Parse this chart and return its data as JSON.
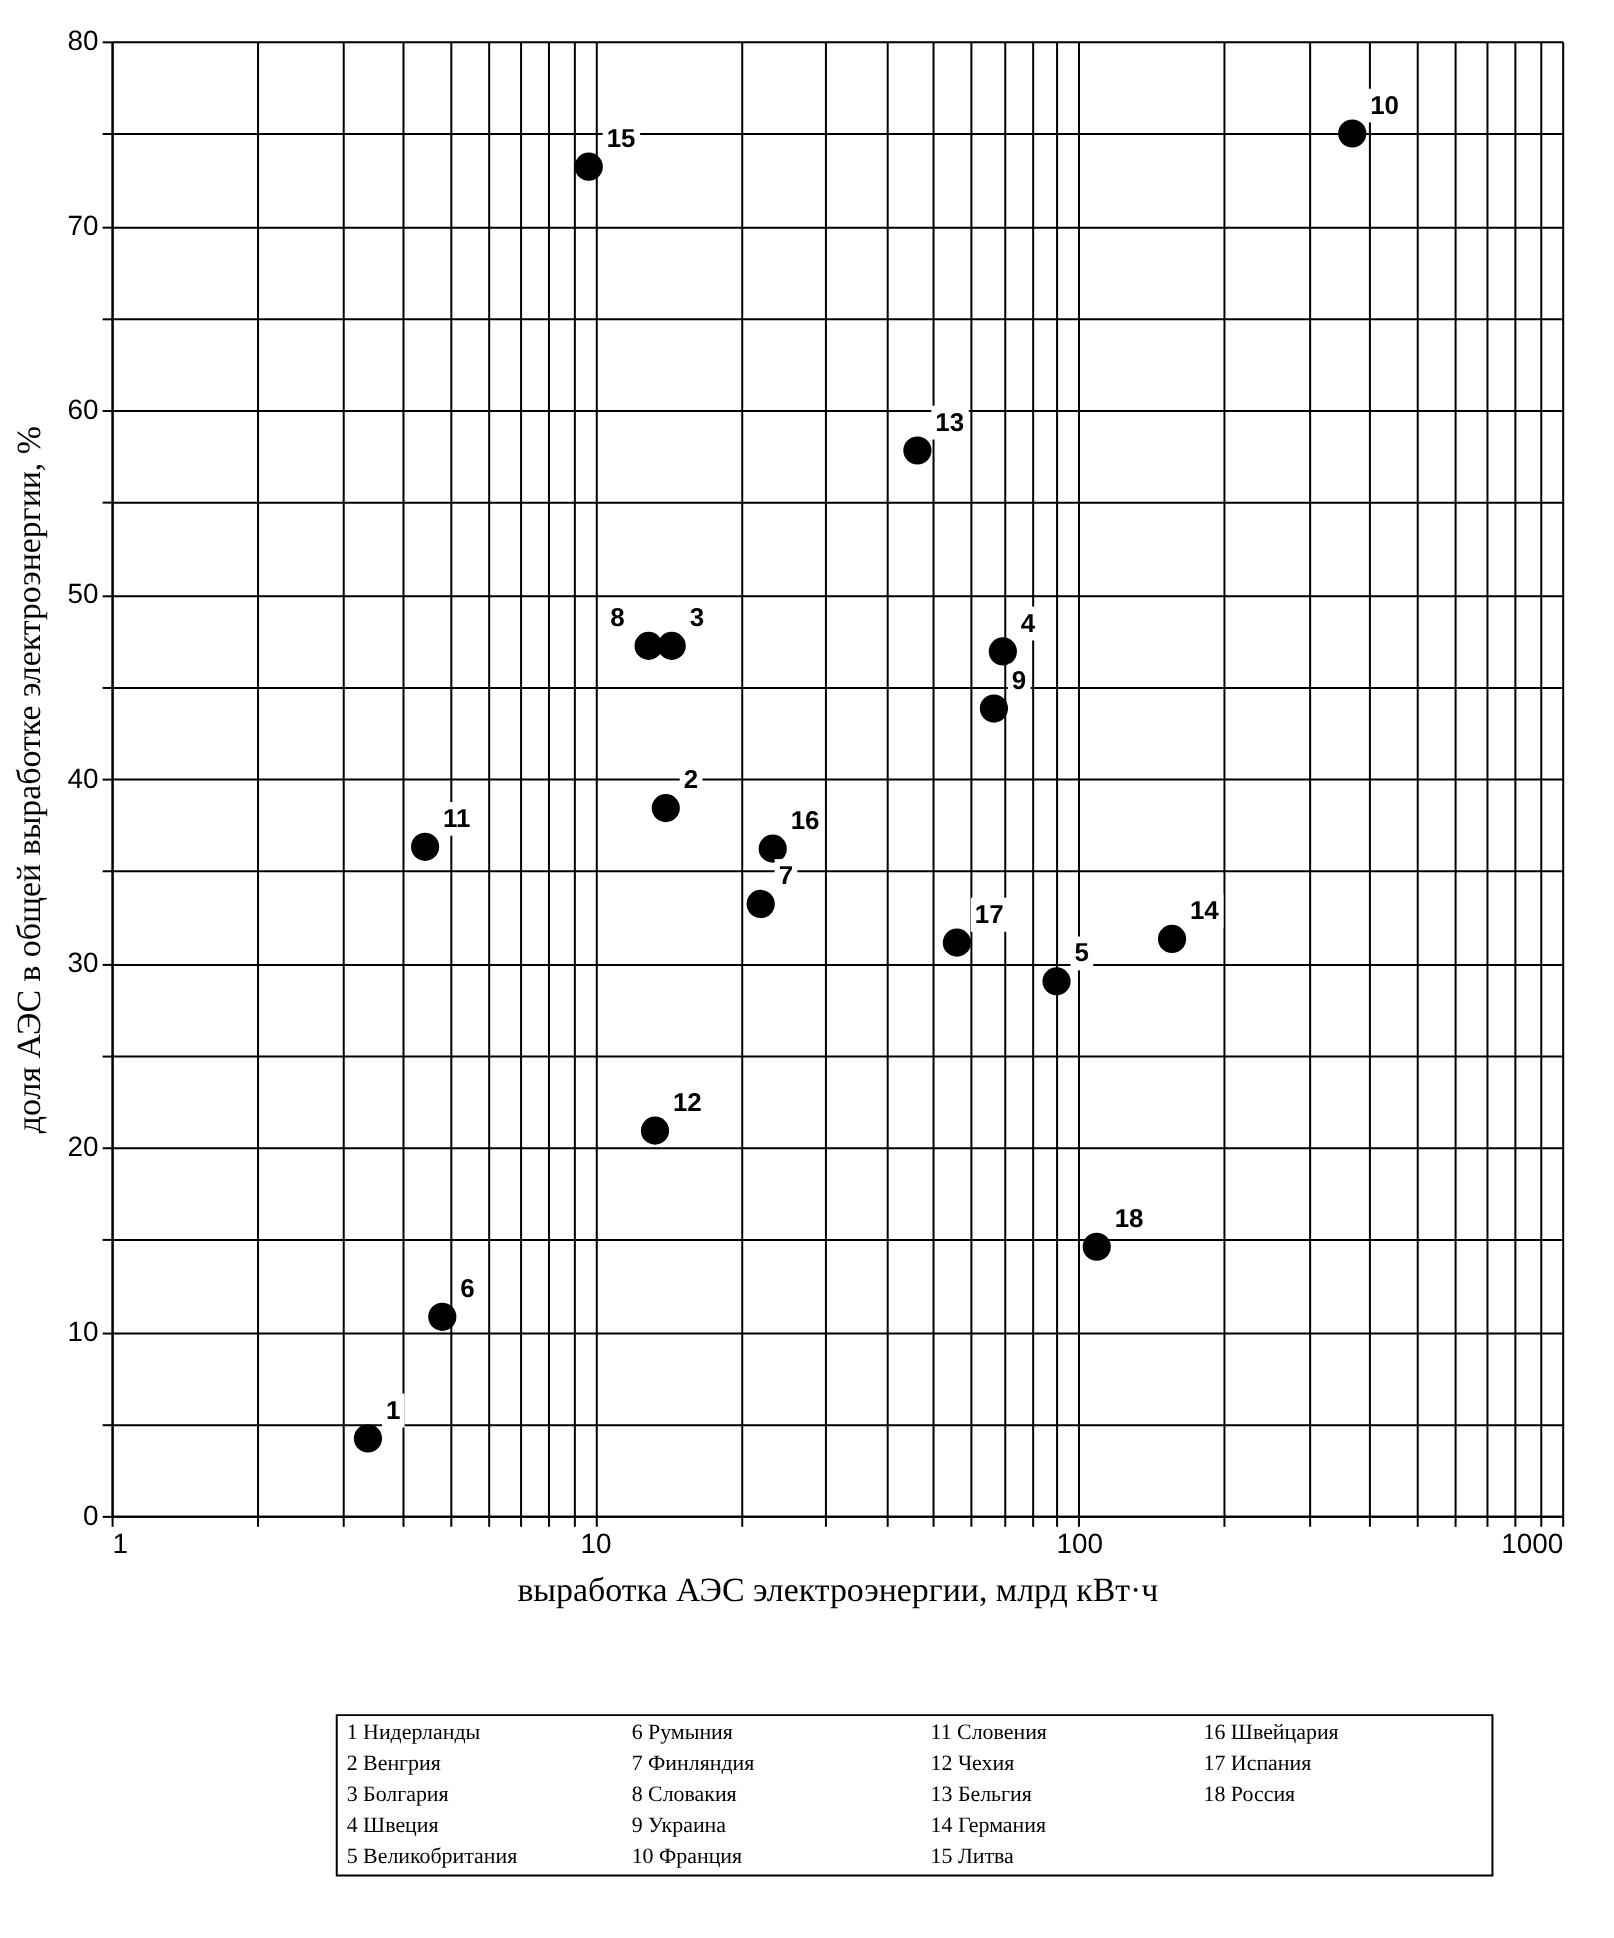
{
  "chart_data": {
    "type": "scatter",
    "xlabel": "выработка АЭС электроэнергии, млрд кВт·ч",
    "ylabel": "доля АЭС в общей выработке электроэнергии, %",
    "x": [
      3.39,
      14.0,
      14.4,
      69.7,
      90,
      4.83,
      22.0,
      12.9,
      66.8,
      368,
      4.45,
      13.3,
      46.4,
      156,
      9.7,
      23.3,
      56.0,
      109
    ],
    "series": [
      {
        "color": "#000000",
        "values": [
          4.2,
          38.4,
          47.2,
          46.9,
          29.0,
          10.8,
          33.2,
          47.2,
          43.8,
          75.0,
          36.3,
          20.9,
          57.8,
          31.3,
          73.2,
          36.2,
          31.1,
          14.6
        ]
      }
    ],
    "log": "x",
    "xlim": [
      1,
      1000
    ],
    "xticks": [
      1,
      {
        "value": 2,
        "label": null
      },
      {
        "value": 3,
        "label": null
      },
      {
        "value": 4,
        "label": null
      },
      {
        "value": 5,
        "label": null
      },
      {
        "value": 6,
        "label": null
      },
      {
        "value": 7,
        "label": null
      },
      {
        "value": 8,
        "label": null
      },
      {
        "value": 9,
        "label": null
      },
      10,
      {
        "value": 20,
        "label": null
      },
      {
        "value": 30,
        "label": null
      },
      {
        "value": 40,
        "label": null
      },
      {
        "value": 50,
        "label": null
      },
      {
        "value": 60,
        "label": null
      },
      {
        "value": 70,
        "label": null
      },
      {
        "value": 80,
        "label": null
      },
      {
        "value": 90,
        "label": null
      },
      100,
      {
        "value": 200,
        "label": null
      },
      {
        "value": 300,
        "label": null
      },
      {
        "value": 400,
        "label": null
      },
      {
        "value": 500,
        "label": null
      },
      {
        "value": 600,
        "label": null
      },
      {
        "value": 700,
        "label": null
      },
      {
        "value": 800,
        "label": null
      },
      {
        "value": 900,
        "label": null
      },
      1000
    ],
    "ylim": [
      0,
      80
    ],
    "yticks": [
      0,
      {
        "value": 5,
        "label": null
      },
      10,
      {
        "value": 15,
        "label": null
      },
      20,
      {
        "value": 25,
        "label": null
      },
      30,
      {
        "value": 35,
        "label": null
      },
      40,
      {
        "value": 45,
        "label": null
      },
      50,
      {
        "value": 55,
        "label": null
      },
      60,
      {
        "value": 65,
        "label": null
      },
      70,
      {
        "value": 75,
        "label": null
      },
      80
    ],
    "grid": true,
    "marker": "circle",
    "annotations": [
      {
        "text": "1",
        "x": 3.39,
        "y": 4.2
      },
      {
        "text": "2",
        "x": 14.0,
        "y": 38.4
      },
      {
        "text": "3",
        "x": 14.4,
        "y": 47.2
      },
      {
        "text": "4",
        "x": 69.7,
        "y": 46.9
      },
      {
        "text": "5",
        "x": 90,
        "y": 29.0
      },
      {
        "text": "6",
        "x": 4.83,
        "y": 10.8
      },
      {
        "text": "7",
        "x": 22.0,
        "y": 33.2
      },
      {
        "text": "8",
        "x": 12.9,
        "y": 47.2
      },
      {
        "text": "9",
        "x": 66.8,
        "y": 43.8
      },
      {
        "text": "10",
        "x": 368,
        "y": 75.0
      },
      {
        "text": "11",
        "x": 4.45,
        "y": 36.3
      },
      {
        "text": "12",
        "x": 13.3,
        "y": 20.9
      },
      {
        "text": "13",
        "x": 46.4,
        "y": 57.8
      },
      {
        "text": "14",
        "x": 156,
        "y": 31.3
      },
      {
        "text": "15",
        "x": 9.7,
        "y": 73.2
      },
      {
        "text": "16",
        "x": 23.3,
        "y": 36.2
      },
      {
        "text": "17",
        "x": 56.0,
        "y": 31.1
      },
      {
        "text": "18",
        "x": 109,
        "y": 14.6
      },
      "1 Нидерланды",
      "2 Венгрия",
      "3 Болгария",
      "4 Швеция",
      "5 Великобритания",
      "6 Румыния",
      "7 Финляндия",
      "8 Словакия",
      "9 Украина",
      "10 Франция",
      "11 Словения",
      "12 Чехия",
      "13 Бельгия",
      "14 Германия",
      "15 Литва",
      "16 Швейцария",
      "17 Испания",
      "18 Россия"
    ]
  }
}
